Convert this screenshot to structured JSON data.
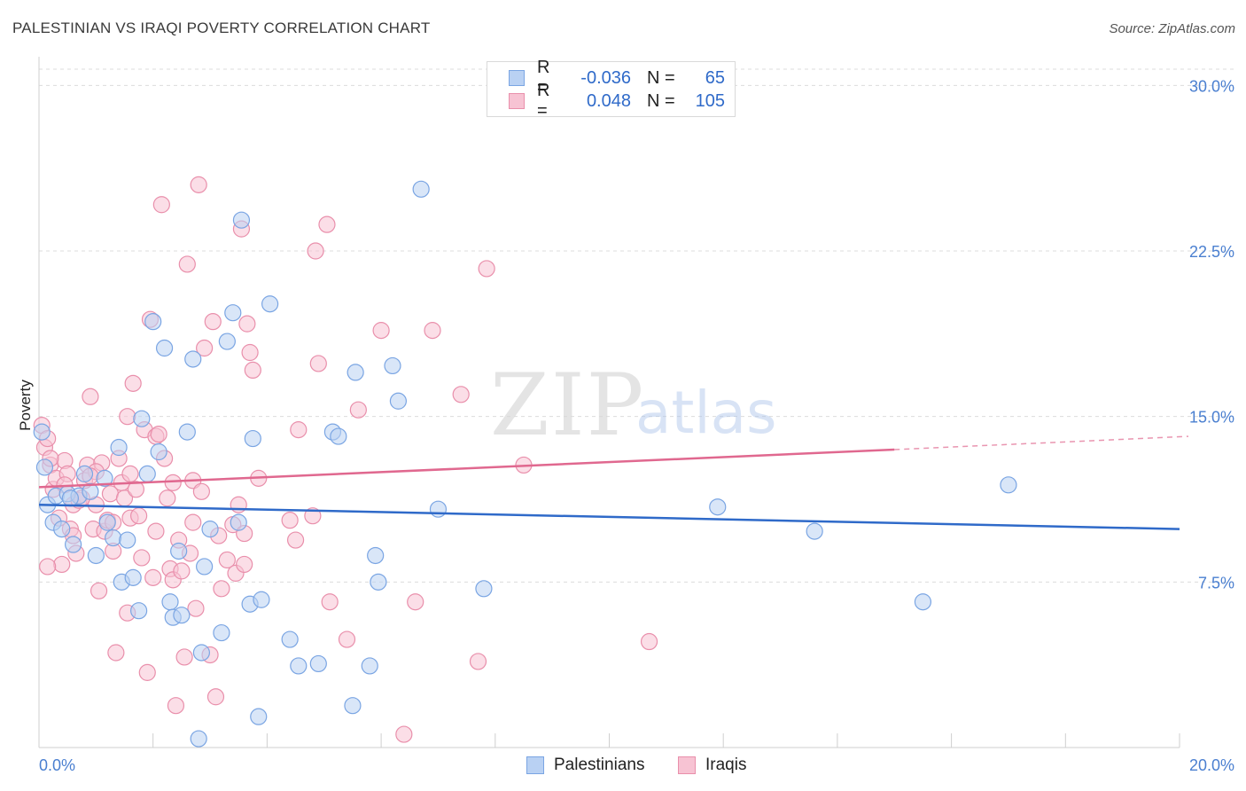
{
  "title": "PALESTINIAN VS IRAQI POVERTY CORRELATION CHART",
  "source": "Source: ZipAtlas.com",
  "watermark": {
    "zip": "ZIP",
    "atlas": "atlas"
  },
  "legend": {
    "rows": [
      {
        "r_label": "R =",
        "r_value": "-0.036",
        "n_label": "N =",
        "n_value": "65"
      },
      {
        "r_label": "R =",
        "r_value": "0.048",
        "n_label": "N =",
        "n_value": "105"
      }
    ]
  },
  "bottom_legend": [
    "Palestinians",
    "Iraqis"
  ],
  "colors": {
    "blue_fill": "#b9d1f3",
    "blue_stroke": "#7aa5e3",
    "blue_line": "#2f6ac9",
    "pink_fill": "#f7c3d3",
    "pink_stroke": "#e98fab",
    "pink_line": "#e0688f",
    "tick_text": "#4a7fd0",
    "grid": "#dcdcdc"
  },
  "chart_data": {
    "type": "scatter",
    "title": "PALESTINIAN VS IRAQI POVERTY CORRELATION CHART",
    "xlabel": "",
    "ylabel": "Poverty",
    "xlim": [
      0,
      20
    ],
    "ylim": [
      0,
      31.3
    ],
    "x_ticks": [
      "0.0%",
      "20.0%"
    ],
    "y_ticks": [
      {
        "value": 7.5,
        "label": "7.5%"
      },
      {
        "value": 15.0,
        "label": "15.0%"
      },
      {
        "value": 22.5,
        "label": "22.5%"
      },
      {
        "value": 30.0,
        "label": "30.0%"
      }
    ],
    "grid": true,
    "legend_position": "top-center",
    "series": [
      {
        "name": "Palestinians",
        "color": "#b9d1f3",
        "trend": {
          "x": [
            0,
            20
          ],
          "y": [
            11.0,
            9.9
          ],
          "style": "solid"
        },
        "points": [
          [
            0.05,
            14.3
          ],
          [
            0.1,
            12.7
          ],
          [
            0.15,
            11.0
          ],
          [
            0.25,
            10.2
          ],
          [
            0.3,
            11.4
          ],
          [
            0.4,
            9.9
          ],
          [
            0.5,
            11.5
          ],
          [
            0.6,
            9.2
          ],
          [
            0.7,
            11.4
          ],
          [
            0.8,
            12.4
          ],
          [
            0.9,
            11.6
          ],
          [
            1.0,
            8.7
          ],
          [
            1.15,
            12.2
          ],
          [
            1.3,
            9.5
          ],
          [
            1.4,
            13.6
          ],
          [
            1.45,
            7.5
          ],
          [
            1.55,
            9.4
          ],
          [
            1.65,
            7.7
          ],
          [
            1.75,
            6.2
          ],
          [
            1.8,
            14.9
          ],
          [
            1.9,
            12.4
          ],
          [
            2.0,
            19.3
          ],
          [
            2.1,
            13.4
          ],
          [
            2.2,
            18.1
          ],
          [
            2.3,
            6.6
          ],
          [
            2.35,
            5.9
          ],
          [
            2.45,
            8.9
          ],
          [
            2.5,
            6.0
          ],
          [
            2.6,
            14.3
          ],
          [
            2.7,
            17.6
          ],
          [
            2.85,
            4.3
          ],
          [
            2.9,
            8.2
          ],
          [
            3.0,
            9.9
          ],
          [
            3.2,
            5.2
          ],
          [
            3.3,
            18.4
          ],
          [
            3.4,
            19.7
          ],
          [
            3.5,
            10.2
          ],
          [
            3.55,
            23.9
          ],
          [
            3.7,
            6.5
          ],
          [
            3.75,
            14.0
          ],
          [
            3.85,
            1.4
          ],
          [
            3.9,
            6.7
          ],
          [
            4.05,
            20.1
          ],
          [
            4.4,
            4.9
          ],
          [
            4.55,
            3.7
          ],
          [
            4.9,
            3.8
          ],
          [
            5.15,
            14.3
          ],
          [
            5.25,
            14.1
          ],
          [
            5.5,
            1.9
          ],
          [
            5.55,
            17.0
          ],
          [
            5.8,
            3.7
          ],
          [
            5.9,
            8.7
          ],
          [
            5.95,
            7.5
          ],
          [
            6.2,
            17.3
          ],
          [
            6.3,
            15.7
          ],
          [
            6.7,
            25.3
          ],
          [
            7.0,
            10.8
          ],
          [
            7.8,
            7.2
          ],
          [
            11.9,
            10.9
          ],
          [
            13.6,
            9.8
          ],
          [
            15.5,
            6.6
          ],
          [
            17.0,
            11.9
          ],
          [
            2.8,
            0.4
          ],
          [
            0.55,
            11.3
          ],
          [
            1.2,
            10.2
          ]
        ]
      },
      {
        "name": "Iraqis",
        "color": "#f7c3d3",
        "trend": {
          "x": [
            0,
            15
          ],
          "y": [
            11.8,
            13.5
          ],
          "x_dashed_to": 20,
          "y_dashed_to": 14.1,
          "style": "solid-then-dashed"
        },
        "points": [
          [
            0.05,
            14.6
          ],
          [
            0.1,
            13.6
          ],
          [
            0.15,
            14.0
          ],
          [
            0.2,
            12.8
          ],
          [
            0.25,
            11.7
          ],
          [
            0.3,
            12.2
          ],
          [
            0.35,
            10.4
          ],
          [
            0.4,
            8.3
          ],
          [
            0.45,
            13.0
          ],
          [
            0.5,
            12.4
          ],
          [
            0.55,
            9.9
          ],
          [
            0.6,
            11.0
          ],
          [
            0.65,
            8.8
          ],
          [
            0.7,
            11.2
          ],
          [
            0.75,
            11.3
          ],
          [
            0.8,
            12.1
          ],
          [
            0.85,
            12.8
          ],
          [
            0.9,
            15.9
          ],
          [
            0.95,
            9.9
          ],
          [
            1.0,
            11.0
          ],
          [
            1.05,
            7.1
          ],
          [
            1.1,
            12.9
          ],
          [
            1.15,
            9.8
          ],
          [
            1.2,
            10.3
          ],
          [
            1.25,
            11.5
          ],
          [
            1.3,
            8.9
          ],
          [
            1.35,
            4.3
          ],
          [
            1.4,
            13.1
          ],
          [
            1.45,
            12.0
          ],
          [
            1.5,
            11.3
          ],
          [
            1.55,
            15.0
          ],
          [
            1.6,
            10.4
          ],
          [
            1.65,
            16.5
          ],
          [
            1.7,
            11.7
          ],
          [
            1.75,
            10.5
          ],
          [
            1.8,
            8.6
          ],
          [
            1.85,
            14.4
          ],
          [
            1.9,
            3.4
          ],
          [
            1.95,
            19.4
          ],
          [
            2.0,
            7.7
          ],
          [
            2.05,
            14.1
          ],
          [
            2.1,
            14.2
          ],
          [
            2.15,
            24.6
          ],
          [
            2.2,
            13.1
          ],
          [
            2.25,
            11.3
          ],
          [
            2.3,
            8.1
          ],
          [
            2.35,
            7.6
          ],
          [
            2.4,
            1.9
          ],
          [
            2.45,
            9.4
          ],
          [
            2.5,
            8.0
          ],
          [
            2.55,
            4.1
          ],
          [
            2.6,
            21.9
          ],
          [
            2.65,
            8.8
          ],
          [
            2.7,
            10.2
          ],
          [
            2.75,
            6.3
          ],
          [
            2.8,
            25.5
          ],
          [
            2.9,
            18.1
          ],
          [
            3.0,
            4.2
          ],
          [
            3.05,
            19.3
          ],
          [
            3.1,
            2.3
          ],
          [
            3.2,
            7.2
          ],
          [
            3.3,
            8.5
          ],
          [
            3.4,
            10.1
          ],
          [
            3.45,
            7.9
          ],
          [
            3.5,
            11.0
          ],
          [
            3.55,
            23.5
          ],
          [
            3.6,
            9.7
          ],
          [
            3.65,
            19.2
          ],
          [
            3.7,
            17.9
          ],
          [
            3.75,
            17.1
          ],
          [
            4.4,
            10.3
          ],
          [
            4.5,
            9.4
          ],
          [
            4.55,
            14.4
          ],
          [
            4.8,
            10.5
          ],
          [
            4.85,
            22.5
          ],
          [
            4.9,
            17.4
          ],
          [
            5.05,
            23.7
          ],
          [
            5.1,
            6.6
          ],
          [
            5.6,
            15.3
          ],
          [
            5.4,
            4.9
          ],
          [
            6.0,
            18.9
          ],
          [
            6.4,
            0.6
          ],
          [
            6.6,
            6.6
          ],
          [
            6.9,
            18.9
          ],
          [
            7.4,
            16.0
          ],
          [
            7.7,
            3.9
          ],
          [
            7.85,
            21.7
          ],
          [
            8.5,
            12.8
          ],
          [
            10.7,
            4.8
          ],
          [
            0.15,
            8.2
          ],
          [
            0.6,
            9.6
          ],
          [
            1.0,
            12.5
          ],
          [
            1.3,
            10.2
          ],
          [
            1.55,
            6.1
          ],
          [
            2.35,
            12.0
          ],
          [
            2.7,
            12.1
          ],
          [
            3.15,
            9.6
          ],
          [
            3.85,
            12.2
          ],
          [
            0.2,
            13.1
          ],
          [
            0.45,
            11.9
          ],
          [
            0.9,
            12.3
          ],
          [
            1.6,
            12.4
          ],
          [
            2.05,
            9.8
          ],
          [
            2.85,
            11.6
          ],
          [
            3.6,
            8.3
          ]
        ]
      }
    ]
  }
}
